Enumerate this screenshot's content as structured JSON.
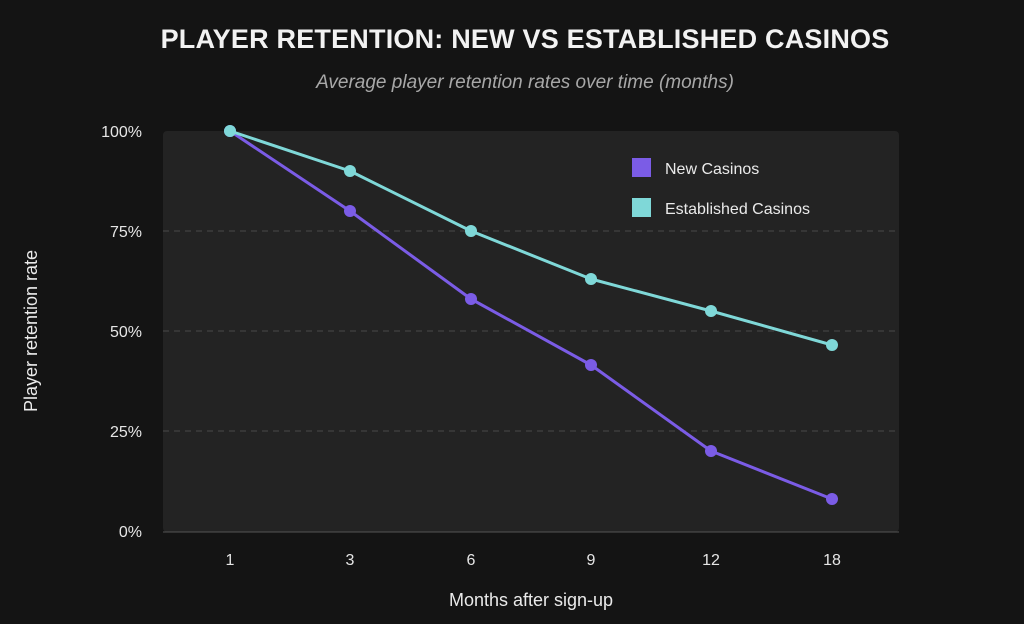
{
  "chart_data": {
    "type": "line",
    "title": "PLAYER RETENTION: NEW VS ESTABLISHED CASINOS",
    "subtitle": "Average player retention rates over time (months)",
    "xlabel": "Months after sign-up",
    "ylabel": "Player retention rate",
    "categories": [
      "1",
      "3",
      "6",
      "9",
      "12",
      "18"
    ],
    "yticks": [
      "0%",
      "25%",
      "50%",
      "75%",
      "100%"
    ],
    "ylim": [
      0,
      100
    ],
    "grid": "horizontal-dashed",
    "legend_position": "top-right",
    "series": [
      {
        "name": "New Casinos",
        "color": "#7b5ce6",
        "values": [
          100,
          80,
          58,
          41.5,
          20,
          8
        ]
      },
      {
        "name": "Established Casinos",
        "color": "#7fd8d8",
        "values": [
          100,
          90,
          75,
          63,
          55,
          46.5
        ]
      }
    ]
  }
}
